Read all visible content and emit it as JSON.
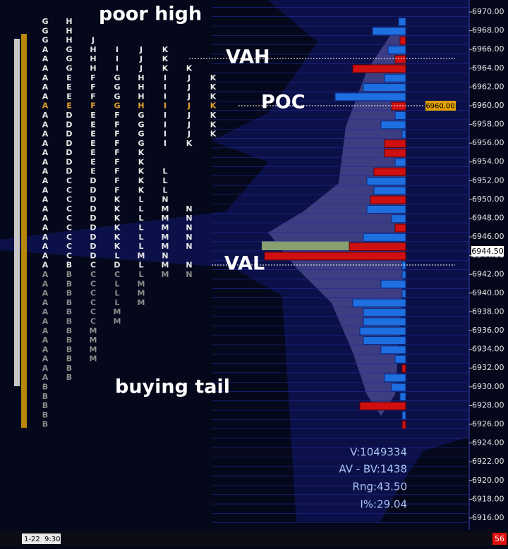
{
  "annotations": {
    "poor_high": "poor high",
    "vah": "VAH",
    "poc": "POC",
    "val": "VAL",
    "buying_tail": "buying tail"
  },
  "price_axis": {
    "labels": [
      "6970.00",
      "6968.00",
      "6966.00",
      "6964.00",
      "6962.00",
      "6960.00",
      "6958.00",
      "6956.00",
      "6954.00",
      "6952.00",
      "6950.00",
      "6948.00",
      "6946.00",
      "6944.00",
      "6942.00",
      "6940.00",
      "6938.00",
      "6936.00",
      "6934.00",
      "6932.00",
      "6930.00",
      "6928.00",
      "6926.00",
      "6924.00",
      "6922.00",
      "6920.00",
      "6918.00",
      "6916.00"
    ],
    "poc_label": "6960.00",
    "last_price": "6944.50"
  },
  "tpo": {
    "rows": [
      [
        "G",
        "H"
      ],
      [
        "G",
        "H"
      ],
      [
        "G",
        "H",
        "J"
      ],
      [
        "A",
        "G",
        "H",
        "I",
        "J",
        "K"
      ],
      [
        "A",
        "G",
        "H",
        "I",
        "J",
        "K"
      ],
      [
        "A",
        "G",
        "H",
        "I",
        "J",
        "K",
        "K"
      ],
      [
        "A",
        "E",
        "F",
        "G",
        "H",
        "I",
        "J",
        "K"
      ],
      [
        "A",
        "E",
        "F",
        "G",
        "H",
        "I",
        "J",
        "K"
      ],
      [
        "A",
        "E",
        "F",
        "G",
        "H",
        "I",
        "J",
        "K"
      ],
      [
        "A",
        "E",
        "F",
        "G",
        "H",
        "I",
        "J",
        "K"
      ],
      [
        "A",
        "D",
        "E",
        "F",
        "G",
        "I",
        "J",
        "K"
      ],
      [
        "A",
        "D",
        "E",
        "F",
        "G",
        "I",
        "J",
        "K"
      ],
      [
        "A",
        "D",
        "E",
        "F",
        "G",
        "I",
        "J",
        "K"
      ],
      [
        "A",
        "D",
        "E",
        "F",
        "G",
        "I",
        "K"
      ],
      [
        "A",
        "D",
        "E",
        "F",
        "K"
      ],
      [
        "A",
        "D",
        "E",
        "F",
        "K"
      ],
      [
        "A",
        "D",
        "E",
        "F",
        "K",
        "L"
      ],
      [
        "A",
        "C",
        "D",
        "F",
        "K",
        "L"
      ],
      [
        "A",
        "C",
        "D",
        "F",
        "K",
        "L"
      ],
      [
        "A",
        "C",
        "D",
        "K",
        "L",
        "N"
      ],
      [
        "A",
        "C",
        "D",
        "K",
        "L",
        "M",
        "N"
      ],
      [
        "A",
        "C",
        "D",
        "K",
        "L",
        "M",
        "N"
      ],
      [
        "A",
        "C",
        "D",
        "K",
        "L",
        "M",
        "N"
      ],
      [
        "A",
        "C",
        "D",
        "K",
        "L",
        "M",
        "N"
      ],
      [
        "A",
        "C",
        "D",
        "K",
        "L",
        "M",
        "N"
      ],
      [
        "A",
        "C",
        "D",
        "L",
        "M",
        "N"
      ],
      [
        "A",
        "B",
        "C",
        "D",
        "L",
        "M",
        "N"
      ],
      [
        "A",
        "B",
        "C",
        "C",
        "L",
        "M",
        "N"
      ],
      [
        "A",
        "B",
        "C",
        "L",
        "M"
      ],
      [
        "A",
        "B",
        "C",
        "L",
        "M"
      ],
      [
        "A",
        "B",
        "C",
        "L",
        "M"
      ],
      [
        "A",
        "B",
        "C",
        "M"
      ],
      [
        "A",
        "B",
        "C",
        "M"
      ],
      [
        "A",
        "B",
        "M"
      ],
      [
        "A",
        "B",
        "M"
      ],
      [
        "A",
        "B",
        "M"
      ],
      [
        "A",
        "B",
        "M"
      ],
      [
        "A",
        "B"
      ],
      [
        "A",
        "B"
      ],
      [
        "B"
      ],
      [
        "B"
      ],
      [
        "B"
      ],
      [
        "B"
      ],
      [
        "B"
      ]
    ]
  },
  "delta_profile": {
    "values": [
      10,
      47,
      -8,
      25,
      -15,
      -75,
      30,
      60,
      100,
      -20,
      15,
      35,
      5,
      -30,
      -30,
      15,
      -45,
      55,
      45,
      -50,
      55,
      20,
      -15,
      60,
      -80,
      -200,
      5,
      5,
      35,
      5,
      75,
      60,
      60,
      65,
      60,
      35,
      15,
      -5,
      30,
      20,
      8,
      -65,
      5,
      -5
    ]
  },
  "stats": {
    "volume": "V:1049334",
    "delta": "AV - BV:1438",
    "range": "Rng:43.50",
    "ib": "I%:29.04"
  },
  "footer": {
    "session": "1-22  9:30",
    "count": "56"
  }
}
